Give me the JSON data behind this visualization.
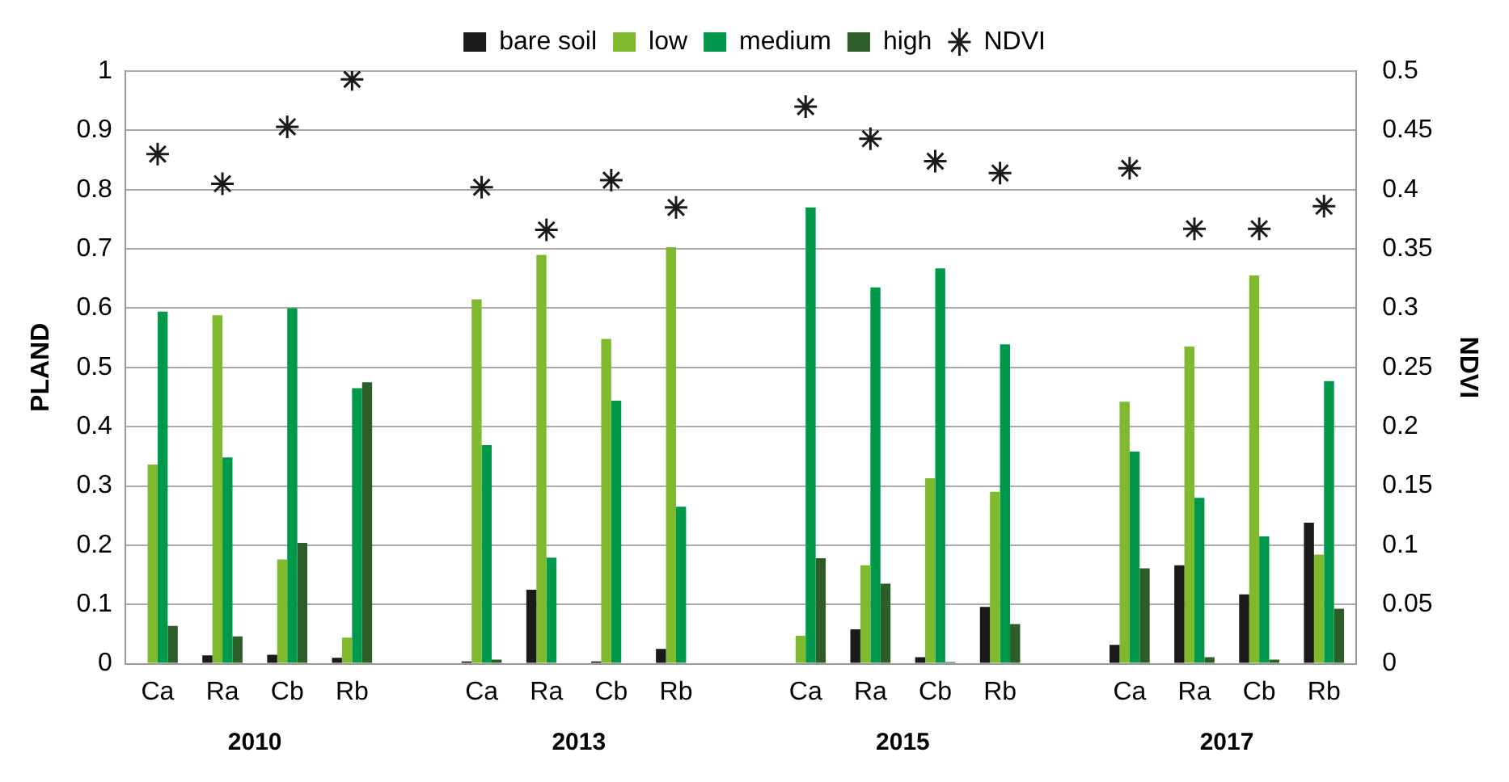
{
  "chart_data": {
    "type": "bar",
    "ylabel": "PLAND",
    "y2label": "NDVI",
    "categories": [
      "Ca",
      "Ra",
      "Cb",
      "Rb",
      null,
      "Ca",
      "Ra",
      "Cb",
      "Rb",
      null,
      "Ca",
      "Ra",
      "Cb",
      "Rb",
      null,
      "Ca",
      "Ra",
      "Cb",
      "Rb"
    ],
    "series": [
      {
        "name": "bare soil",
        "color": "#1a1a1a",
        "values": [
          0,
          0.014,
          0.015,
          0.01,
          null,
          0.004,
          0.125,
          0.004,
          0.025,
          null,
          0,
          0.058,
          0.011,
          0.096,
          null,
          0.032,
          0.166,
          0.117,
          0.238
        ]
      },
      {
        "name": "low",
        "color": "#7fba2e",
        "values": [
          0.336,
          0.588,
          0.176,
          0.044,
          null,
          0.615,
          0.69,
          0.548,
          0.703,
          null,
          0.047,
          0.166,
          0.313,
          0.29,
          null,
          0.442,
          0.535,
          0.655,
          0.184
        ]
      },
      {
        "name": "medium",
        "color": "#00984a",
        "values": [
          0.594,
          0.348,
          0.6,
          0.465,
          null,
          0.369,
          0.179,
          0.444,
          0.265,
          null,
          0.77,
          0.635,
          0.667,
          0.539,
          null,
          0.358,
          0.28,
          0.215,
          0.477
        ]
      },
      {
        "name": "high",
        "color": "#2d5e2a",
        "values": [
          0.064,
          0.046,
          0.204,
          0.475,
          null,
          0.007,
          null,
          0,
          0,
          null,
          0.178,
          0.135,
          0.003,
          0.067,
          null,
          0.161,
          0.011,
          0.007,
          0.093
        ]
      },
      {
        "name": "NDVI",
        "color": "#1a1a1a",
        "type": "scatter",
        "axis": "y2",
        "marker": "cross",
        "values": [
          0.43,
          0.405,
          0.453,
          0.493,
          null,
          0.402,
          0.366,
          0.408,
          0.385,
          null,
          0.47,
          0.443,
          0.424,
          0.414,
          null,
          0.418,
          0.367,
          0.367,
          0.386
        ]
      }
    ],
    "ylim": [
      0,
      1
    ],
    "yticks": [
      0,
      0.1,
      0.2,
      0.3,
      0.4,
      0.5,
      0.6,
      0.7,
      0.8,
      0.9,
      1
    ],
    "y2lim": [
      0,
      0.5
    ],
    "y2ticks": [
      0,
      0.05,
      0.1,
      0.15,
      0.2,
      0.25,
      0.3,
      0.35,
      0.4,
      0.45,
      0.5
    ],
    "grid": "y",
    "legend": "top",
    "annotations": [
      "2010",
      "2013",
      "2015",
      "2017"
    ]
  }
}
